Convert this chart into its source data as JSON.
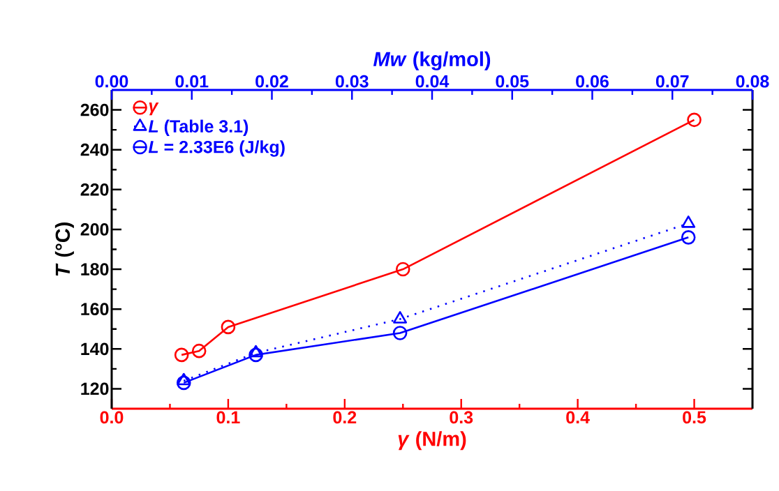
{
  "chart_data": {
    "type": "line",
    "xlabel": "*γ* (N/m)",
    "x2label": "*Mw* (kg/mol)",
    "ylabel": "*T* (°C)",
    "xlim": [
      0,
      0.55
    ],
    "xticks": [
      {
        "value": 0,
        "label": "0.0"
      },
      0.1,
      0.2,
      0.3,
      0.4,
      0.5
    ],
    "x2lim": [
      0,
      0.08
    ],
    "x2ticks": [
      {
        "value": 0,
        "label": "0.00"
      },
      0.01,
      0.02,
      0.03,
      0.04,
      0.05,
      0.06,
      0.07,
      0.08
    ],
    "ylim": [
      110,
      270
    ],
    "yticks": [
      120,
      140,
      160,
      180,
      200,
      220,
      240,
      260
    ],
    "legend": "top left",
    "series": [
      {
        "name": "*γ*",
        "color": "#ff0000",
        "marker": "circle",
        "line_style": "solid",
        "x": [
          0.06,
          0.075,
          0.1,
          0.25,
          0.5
        ],
        "values": [
          137,
          139,
          151,
          180,
          255
        ]
      },
      {
        "name": "*L* (Table 3.1)",
        "color": "#0000ff",
        "marker": "triangle",
        "line_style": "dotted",
        "axis": "x2",
        "x": [
          0.009,
          0.018,
          0.036,
          0.072
        ],
        "values": [
          124,
          138,
          155,
          203
        ]
      },
      {
        "name": "*L* = 2.33E6 (J/kg)",
        "color": "#0000ff",
        "marker": "circle",
        "line_style": "solid",
        "axis": "x2",
        "x": [
          0.009,
          0.018,
          0.036,
          0.072
        ],
        "values": [
          123,
          137,
          148,
          196
        ]
      }
    ]
  }
}
